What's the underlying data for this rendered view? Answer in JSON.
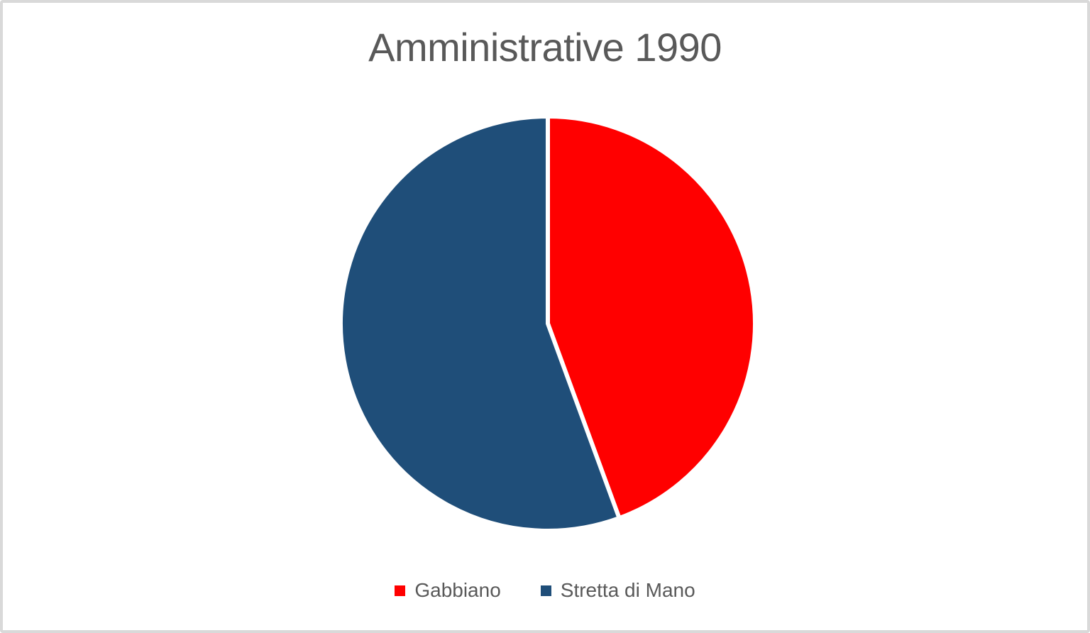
{
  "canvas": {
    "background": "#FFFFFF",
    "border_color": "#D9D9D9"
  },
  "chart_data": {
    "type": "pie",
    "title": "Amministrative 1990",
    "title_color": "#595959",
    "text_color": "#595959",
    "legend_position": "bottom",
    "start_angle_deg": 0,
    "separator_color": "#FFFFFF",
    "slices": [
      {
        "label": "Gabbiano",
        "value": 44.4,
        "unit": "percent_estimated",
        "angle_deg": 160,
        "color": "#FF0000"
      },
      {
        "label": "Stretta di Mano",
        "value": 55.6,
        "unit": "percent_estimated",
        "angle_deg": 200,
        "color": "#1F4E79"
      }
    ],
    "data_labels_shown": false,
    "axes_shown": false
  }
}
